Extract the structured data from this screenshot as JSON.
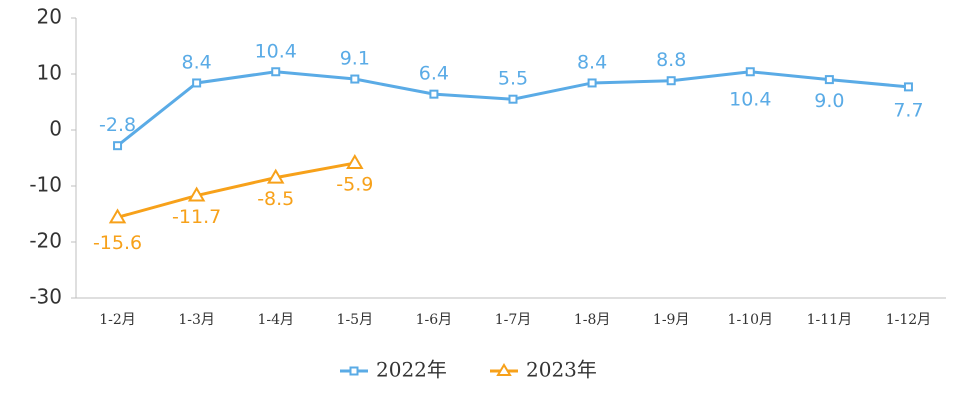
{
  "chart_data": {
    "type": "line",
    "categories": [
      "1-2月",
      "1-3月",
      "1-4月",
      "1-5月",
      "1-6月",
      "1-7月",
      "1-8月",
      "1-9月",
      "1-10月",
      "1-11月",
      "1-12月"
    ],
    "series": [
      {
        "name": "2022年",
        "color": "#5aabe6",
        "marker": "square",
        "values": [
          -2.8,
          8.4,
          10.4,
          9.1,
          6.4,
          5.5,
          8.4,
          8.8,
          10.4,
          9.0,
          7.7
        ],
        "value_labels": [
          "-2.8",
          "8.4",
          "10.4",
          "9.1",
          "6.4",
          "5.5",
          "8.4",
          "8.8",
          "10.4",
          "9.0",
          "7.7"
        ]
      },
      {
        "name": "2023年",
        "color": "#f7a11a",
        "marker": "triangle",
        "values": [
          -15.6,
          -11.7,
          -8.5,
          -5.9,
          null,
          null,
          null,
          null,
          null,
          null,
          null
        ],
        "value_labels": [
          "-15.6",
          "-11.7",
          "-8.5",
          "-5.9",
          null,
          null,
          null,
          null,
          null,
          null,
          null
        ]
      }
    ],
    "ylim": [
      -30,
      20
    ],
    "yticks": [
      -30,
      -20,
      -10,
      0,
      10,
      20
    ],
    "legend": "bottom"
  }
}
